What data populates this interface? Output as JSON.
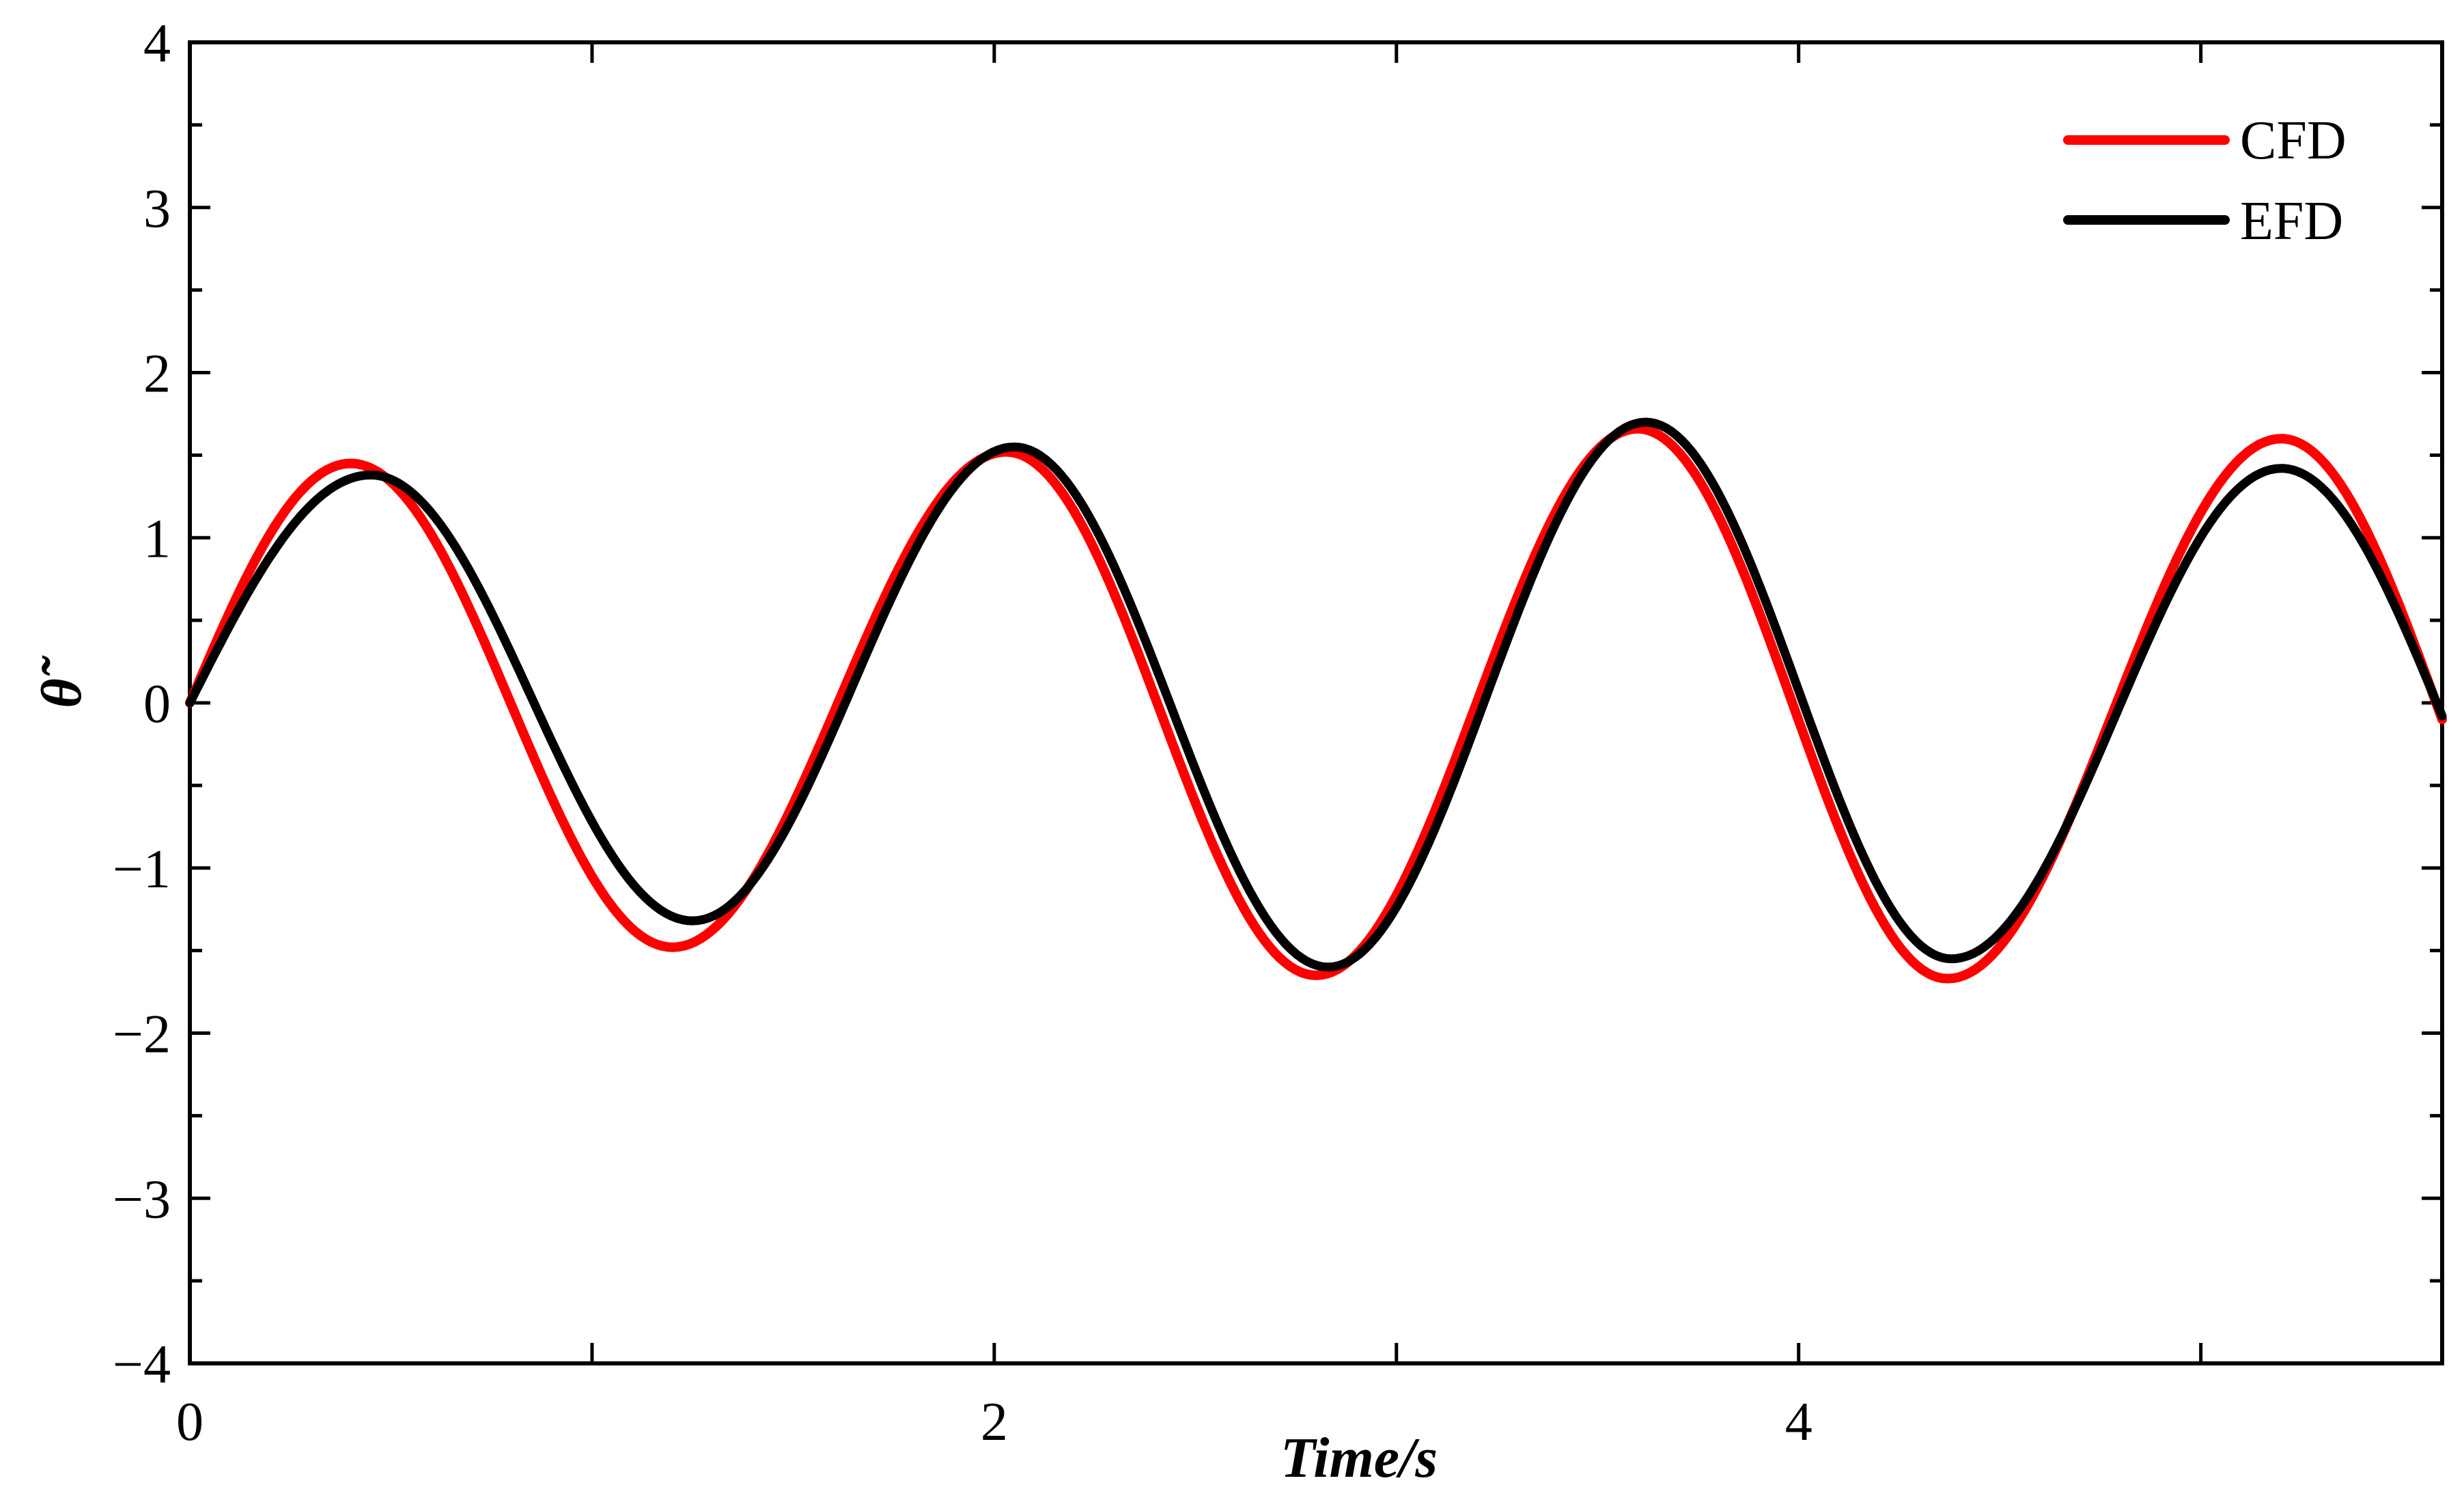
{
  "chart_data": {
    "type": "line",
    "title": "",
    "xlabel": "Time/s",
    "ylabel": "θ̃",
    "xlim": [
      0,
      5.6
    ],
    "ylim": [
      -4,
      4
    ],
    "xticks": [
      0,
      2,
      4
    ],
    "xtick_labels": [
      "0",
      "2",
      "4"
    ],
    "xminor_ticks": [
      1,
      3,
      5
    ],
    "yticks": [
      -4,
      -3,
      -2,
      -1,
      0,
      1,
      2,
      3,
      4
    ],
    "ytick_labels": [
      "−4",
      "−3",
      "−2",
      "−1",
      "0",
      "1",
      "2",
      "3",
      "4"
    ],
    "grid": false,
    "legend_position": "top-right",
    "series": [
      {
        "name": "CFD",
        "color": "#ff0000",
        "x": [
          0.0,
          0.4,
          1.2,
          2.03,
          2.8,
          3.6,
          4.37,
          5.2,
          5.6
        ],
        "y": [
          0.0,
          1.45,
          -1.48,
          1.52,
          -1.65,
          1.66,
          -1.67,
          1.6,
          -0.1
        ]
      },
      {
        "name": "EFD",
        "color": "#000000",
        "x": [
          0.0,
          0.45,
          1.25,
          2.05,
          2.83,
          3.62,
          4.38,
          5.2,
          5.6
        ],
        "y": [
          0.0,
          1.38,
          -1.32,
          1.55,
          -1.6,
          1.7,
          -1.55,
          1.42,
          -0.08
        ]
      }
    ]
  }
}
